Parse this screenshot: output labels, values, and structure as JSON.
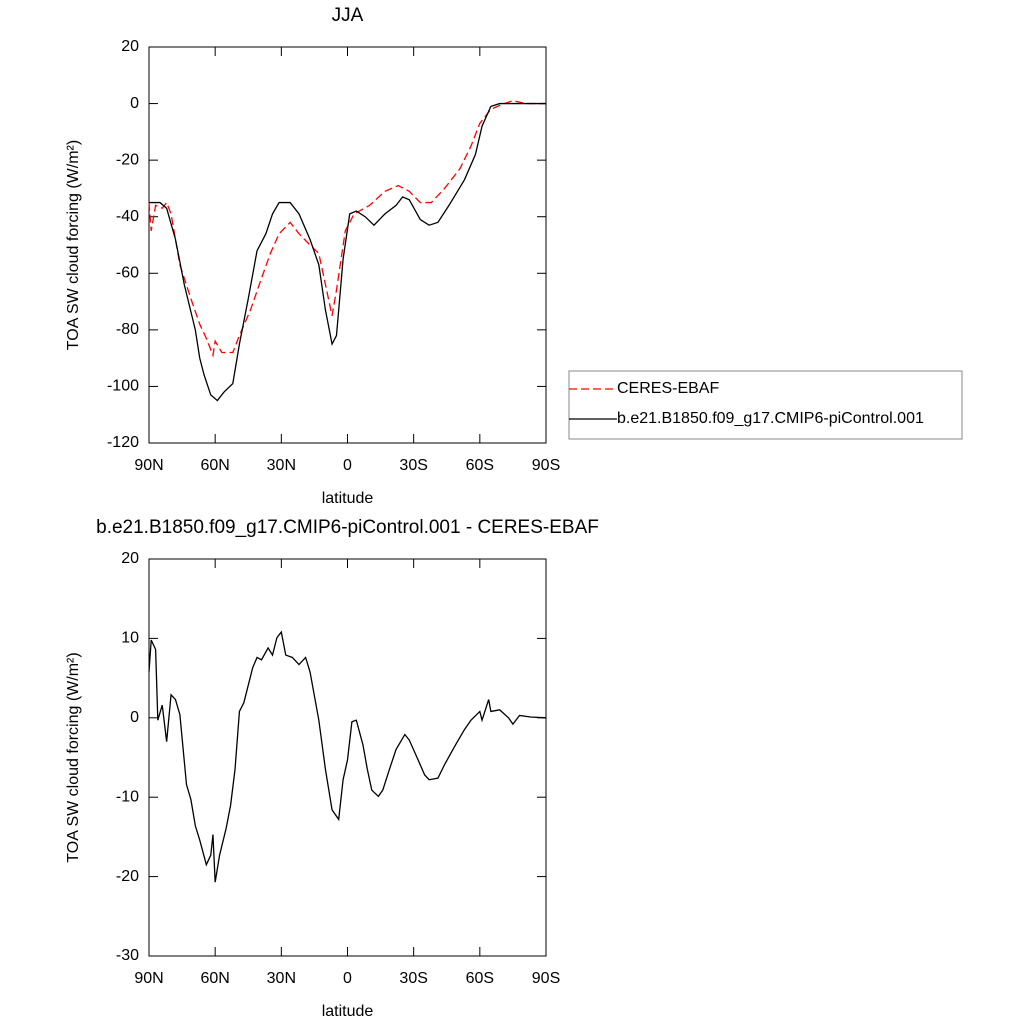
{
  "chart_data": [
    {
      "type": "line",
      "title": "JJA",
      "xlabel": "latitude",
      "ylabel": "TOA SW cloud forcing (W/m²)",
      "xlim": [
        90,
        -90
      ],
      "xticks": [
        {
          "value": 90,
          "label": "90N"
        },
        {
          "value": 60,
          "label": "60N"
        },
        {
          "value": 30,
          "label": "30N"
        },
        0,
        {
          "value": -30,
          "label": "30S"
        },
        {
          "value": -60,
          "label": "60S"
        },
        {
          "value": -90,
          "label": "90S"
        }
      ],
      "ylim": [
        -120,
        20
      ],
      "yticks": [
        -120,
        -100,
        -80,
        -60,
        -40,
        -20,
        0,
        20
      ],
      "legend": "right",
      "series": [
        {
          "name": "CERES-EBAF",
          "color": "#ff0000",
          "dash": true,
          "x": [
            90,
            89,
            87,
            84,
            82,
            80,
            76,
            71,
            67,
            64,
            61,
            60,
            57,
            52,
            49,
            44,
            40,
            35,
            31,
            26,
            22,
            17,
            13,
            10,
            7,
            5,
            1,
            -3,
            -10,
            -17,
            -23,
            -28,
            -33,
            -38,
            -44,
            -51,
            -56,
            -60,
            -65,
            -71,
            -75,
            -81,
            -90
          ],
          "values": [
            -35,
            -45,
            -36,
            -37,
            -35,
            -39,
            -57,
            -69,
            -78,
            -83,
            -89,
            -84,
            -88,
            -88,
            -82,
            -73,
            -64,
            -53,
            -46,
            -42,
            -46,
            -50,
            -53,
            -64,
            -75,
            -66,
            -45,
            -39,
            -36,
            -31,
            -29,
            -31,
            -35,
            -35,
            -30,
            -23,
            -15,
            -7,
            -2,
            0,
            1,
            0,
            0
          ]
        },
        {
          "name": "b.e21.B1850.f09_g17.CMIP6-piControl.001",
          "color": "#000000",
          "dash": false,
          "x": [
            90,
            85,
            82,
            78,
            74,
            69,
            67,
            65,
            62,
            59,
            56,
            52,
            49,
            45,
            41,
            37,
            34,
            31,
            26,
            22,
            17,
            13,
            10,
            7,
            5,
            2,
            -1,
            -4,
            -8,
            -12,
            -17,
            -22,
            -25,
            -28,
            -33,
            -37,
            -41,
            -46,
            -53,
            -58,
            -61,
            -65,
            -69,
            -90
          ],
          "values": [
            -35,
            -35,
            -37,
            -48,
            -64,
            -80,
            -90,
            -96,
            -103,
            -105,
            -102,
            -99,
            -85,
            -69,
            -52,
            -46,
            -39,
            -35,
            -35,
            -39,
            -48,
            -57,
            -73,
            -85,
            -82,
            -55,
            -39,
            -38,
            -40,
            -43,
            -39,
            -36,
            -33,
            -34,
            -41,
            -43,
            -42,
            -36,
            -27,
            -18,
            -8,
            -1,
            0,
            0
          ]
        }
      ]
    },
    {
      "type": "line",
      "title": "b.e21.B1850.f09_g17.CMIP6-piControl.001 - CERES-EBAF",
      "xlabel": "latitude",
      "ylabel": "TOA SW cloud forcing (W/m²)",
      "xlim": [
        90,
        -90
      ],
      "xticks": [
        {
          "value": 90,
          "label": "90N"
        },
        {
          "value": 60,
          "label": "60N"
        },
        {
          "value": 30,
          "label": "30N"
        },
        0,
        {
          "value": -30,
          "label": "30S"
        },
        {
          "value": -60,
          "label": "60S"
        },
        {
          "value": -90,
          "label": "90S"
        }
      ],
      "ylim": [
        -30,
        20
      ],
      "yticks": [
        -30,
        -20,
        -10,
        0,
        10,
        20
      ],
      "color": "#000000",
      "x": [
        90,
        89,
        87,
        86,
        84,
        82,
        80,
        78,
        76,
        73,
        71,
        69,
        67,
        64,
        62,
        61,
        60,
        58,
        55,
        53,
        51,
        49,
        47,
        43,
        41,
        39,
        36,
        34,
        32,
        30,
        28,
        25,
        22,
        19,
        17,
        13,
        10,
        7,
        4,
        2,
        0,
        -2,
        -4,
        -7,
        -9,
        -11,
        -14,
        -16,
        -19,
        -22,
        -26,
        -28,
        -32,
        -35,
        -37,
        -41,
        -44,
        -49,
        -53,
        -56,
        -60,
        -61,
        -64,
        -65,
        -69,
        -73,
        -75,
        -78,
        -83,
        -90
      ],
      "values": [
        5.8,
        9.8,
        8.6,
        -0.3,
        1.6,
        -3,
        2.9,
        2.3,
        0.4,
        -8.4,
        -10.3,
        -13.6,
        -15.4,
        -18.5,
        -17.3,
        -14.7,
        -20.7,
        -17.3,
        -13.9,
        -11,
        -6.5,
        0.8,
        1.9,
        6.3,
        7.6,
        7.3,
        8.8,
        7.9,
        10.1,
        10.8,
        7.9,
        7.6,
        6.7,
        7.6,
        5.8,
        -0.3,
        -6.5,
        -11.6,
        -12.8,
        -7.8,
        -5.3,
        -0.5,
        -0.3,
        -3.4,
        -6.5,
        -9.1,
        -9.9,
        -9.1,
        -6.5,
        -4,
        -2.1,
        -2.8,
        -5.3,
        -7.2,
        -7.8,
        -7.6,
        -5.9,
        -3.4,
        -1.5,
        -0.3,
        0.8,
        -0.3,
        2.3,
        0.8,
        1,
        0,
        -0.8,
        0.3,
        0.1,
        0
      ]
    }
  ]
}
